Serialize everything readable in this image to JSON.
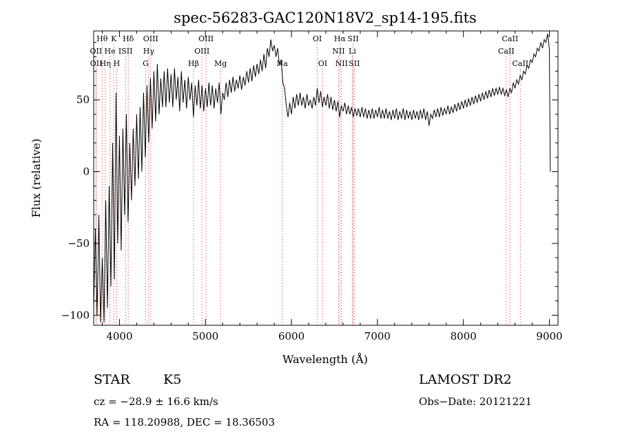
{
  "chart_data": {
    "type": "line",
    "title": "spec-56283-GAC120N18V2_sp14-195.fits",
    "xlabel": "Wavelength (Å)",
    "ylabel": "Flux (relative)",
    "xlim": [
      3700,
      9100
    ],
    "ylim": [
      -107,
      98
    ],
    "xticks": [
      4000,
      5000,
      6000,
      7000,
      8000,
      9000
    ],
    "yticks": [
      -100,
      -50,
      0,
      50
    ],
    "grid": false,
    "series": [
      {
        "color": "#000000",
        "points": [
          [
            3700,
            -95
          ],
          [
            3720,
            -40
          ],
          [
            3740,
            -100
          ],
          [
            3760,
            -30
          ],
          [
            3780,
            -105
          ],
          [
            3800,
            -60
          ],
          [
            3820,
            -105
          ],
          [
            3840,
            -20
          ],
          [
            3860,
            -95
          ],
          [
            3880,
            -10
          ],
          [
            3900,
            -80
          ],
          [
            3920,
            20
          ],
          [
            3940,
            -75
          ],
          [
            3960,
            55
          ],
          [
            3980,
            -50
          ],
          [
            4000,
            25
          ],
          [
            4020,
            -55
          ],
          [
            4040,
            30
          ],
          [
            4060,
            -30
          ],
          [
            4080,
            40
          ],
          [
            4100,
            -35
          ],
          [
            4120,
            20
          ],
          [
            4140,
            -20
          ],
          [
            4160,
            30
          ],
          [
            4180,
            -10
          ],
          [
            4200,
            40
          ],
          [
            4220,
            -5
          ],
          [
            4240,
            45
          ],
          [
            4260,
            0
          ],
          [
            4280,
            55
          ],
          [
            4300,
            10
          ],
          [
            4320,
            60
          ],
          [
            4340,
            20
          ],
          [
            4360,
            65
          ],
          [
            4380,
            30
          ],
          [
            4400,
            70
          ],
          [
            4420,
            35
          ],
          [
            4440,
            75
          ],
          [
            4460,
            40
          ],
          [
            4480,
            65
          ],
          [
            4500,
            45
          ],
          [
            4520,
            70
          ],
          [
            4540,
            45
          ],
          [
            4560,
            72
          ],
          [
            4580,
            48
          ],
          [
            4600,
            68
          ],
          [
            4620,
            45
          ],
          [
            4640,
            72
          ],
          [
            4660,
            50
          ],
          [
            4680,
            66
          ],
          [
            4700,
            42
          ],
          [
            4720,
            70
          ],
          [
            4740,
            48
          ],
          [
            4760,
            64
          ],
          [
            4780,
            44
          ],
          [
            4800,
            66
          ],
          [
            4820,
            50
          ],
          [
            4840,
            62
          ],
          [
            4860,
            38
          ],
          [
            4880,
            60
          ],
          [
            4900,
            46
          ],
          [
            4920,
            64
          ],
          [
            4940,
            44
          ],
          [
            4960,
            60
          ],
          [
            4980,
            42
          ],
          [
            5000,
            58
          ],
          [
            5020,
            45
          ],
          [
            5040,
            62
          ],
          [
            5060,
            46
          ],
          [
            5080,
            60
          ],
          [
            5100,
            44
          ],
          [
            5120,
            58
          ],
          [
            5140,
            48
          ],
          [
            5160,
            62
          ],
          [
            5180,
            40
          ],
          [
            5200,
            55
          ],
          [
            5220,
            50
          ],
          [
            5240,
            62
          ],
          [
            5260,
            52
          ],
          [
            5280,
            64
          ],
          [
            5300,
            55
          ],
          [
            5320,
            66
          ],
          [
            5340,
            56
          ],
          [
            5360,
            64
          ],
          [
            5380,
            58
          ],
          [
            5400,
            67
          ],
          [
            5420,
            57
          ],
          [
            5440,
            66
          ],
          [
            5460,
            60
          ],
          [
            5480,
            70
          ],
          [
            5500,
            62
          ],
          [
            5520,
            72
          ],
          [
            5540,
            63
          ],
          [
            5560,
            74
          ],
          [
            5580,
            66
          ],
          [
            5600,
            75
          ],
          [
            5620,
            68
          ],
          [
            5640,
            78
          ],
          [
            5660,
            70
          ],
          [
            5680,
            82
          ],
          [
            5700,
            72
          ],
          [
            5720,
            86
          ],
          [
            5740,
            80
          ],
          [
            5760,
            92
          ],
          [
            5780,
            84
          ],
          [
            5800,
            88
          ],
          [
            5820,
            80
          ],
          [
            5840,
            86
          ],
          [
            5860,
            74
          ],
          [
            5880,
            78
          ],
          [
            5900,
            62
          ],
          [
            5920,
            58
          ],
          [
            5940,
            46
          ],
          [
            5960,
            38
          ],
          [
            5980,
            48
          ],
          [
            6000,
            40
          ],
          [
            6020,
            52
          ],
          [
            6040,
            44
          ],
          [
            6060,
            54
          ],
          [
            6080,
            46
          ],
          [
            6100,
            55
          ],
          [
            6120,
            46
          ],
          [
            6140,
            52
          ],
          [
            6160,
            44
          ],
          [
            6180,
            54
          ],
          [
            6200,
            46
          ],
          [
            6220,
            50
          ],
          [
            6240,
            44
          ],
          [
            6260,
            52
          ],
          [
            6280,
            46
          ],
          [
            6300,
            58
          ],
          [
            6320,
            48
          ],
          [
            6340,
            56
          ],
          [
            6360,
            45
          ],
          [
            6380,
            52
          ],
          [
            6400,
            46
          ],
          [
            6420,
            54
          ],
          [
            6440,
            44
          ],
          [
            6460,
            52
          ],
          [
            6480,
            43
          ],
          [
            6500,
            50
          ],
          [
            6520,
            42
          ],
          [
            6540,
            49
          ],
          [
            6560,
            38
          ],
          [
            6580,
            46
          ],
          [
            6600,
            42
          ],
          [
            6620,
            48
          ],
          [
            6640,
            40
          ],
          [
            6660,
            46
          ],
          [
            6680,
            40
          ],
          [
            6700,
            45
          ],
          [
            6720,
            38
          ],
          [
            6740,
            44
          ],
          [
            6760,
            39
          ],
          [
            6780,
            44
          ],
          [
            6800,
            38
          ],
          [
            6820,
            45
          ],
          [
            6840,
            38
          ],
          [
            6860,
            44
          ],
          [
            6880,
            37
          ],
          [
            6900,
            43
          ],
          [
            6920,
            37
          ],
          [
            6940,
            44
          ],
          [
            6960,
            37
          ],
          [
            6980,
            43
          ],
          [
            7000,
            38
          ],
          [
            7020,
            45
          ],
          [
            7040,
            37
          ],
          [
            7060,
            43
          ],
          [
            7080,
            37
          ],
          [
            7100,
            44
          ],
          [
            7120,
            37
          ],
          [
            7140,
            42
          ],
          [
            7160,
            36
          ],
          [
            7180,
            43
          ],
          [
            7200,
            37
          ],
          [
            7220,
            44
          ],
          [
            7240,
            36
          ],
          [
            7260,
            42
          ],
          [
            7280,
            37
          ],
          [
            7300,
            44
          ],
          [
            7320,
            36
          ],
          [
            7340,
            43
          ],
          [
            7360,
            37
          ],
          [
            7380,
            42
          ],
          [
            7400,
            36
          ],
          [
            7420,
            43
          ],
          [
            7440,
            37
          ],
          [
            7460,
            42
          ],
          [
            7480,
            36
          ],
          [
            7500,
            43
          ],
          [
            7520,
            37
          ],
          [
            7540,
            44
          ],
          [
            7560,
            36
          ],
          [
            7580,
            42
          ],
          [
            7600,
            32
          ],
          [
            7620,
            40
          ],
          [
            7640,
            37
          ],
          [
            7660,
            43
          ],
          [
            7680,
            38
          ],
          [
            7700,
            44
          ],
          [
            7720,
            38
          ],
          [
            7740,
            45
          ],
          [
            7760,
            39
          ],
          [
            7780,
            44
          ],
          [
            7800,
            40
          ],
          [
            7820,
            46
          ],
          [
            7840,
            40
          ],
          [
            7860,
            45
          ],
          [
            7880,
            41
          ],
          [
            7900,
            47
          ],
          [
            7920,
            42
          ],
          [
            7940,
            48
          ],
          [
            7960,
            43
          ],
          [
            7980,
            49
          ],
          [
            8000,
            44
          ],
          [
            8020,
            50
          ],
          [
            8040,
            45
          ],
          [
            8060,
            51
          ],
          [
            8080,
            46
          ],
          [
            8100,
            52
          ],
          [
            8120,
            47
          ],
          [
            8140,
            53
          ],
          [
            8160,
            48
          ],
          [
            8180,
            54
          ],
          [
            8200,
            49
          ],
          [
            8220,
            55
          ],
          [
            8240,
            50
          ],
          [
            8260,
            56
          ],
          [
            8280,
            51
          ],
          [
            8300,
            57
          ],
          [
            8320,
            52
          ],
          [
            8340,
            58
          ],
          [
            8360,
            53
          ],
          [
            8380,
            58
          ],
          [
            8400,
            54
          ],
          [
            8420,
            59
          ],
          [
            8440,
            54
          ],
          [
            8460,
            58
          ],
          [
            8480,
            53
          ],
          [
            8500,
            57
          ],
          [
            8520,
            52
          ],
          [
            8540,
            58
          ],
          [
            8560,
            55
          ],
          [
            8580,
            62
          ],
          [
            8600,
            58
          ],
          [
            8620,
            64
          ],
          [
            8640,
            61
          ],
          [
            8660,
            67
          ],
          [
            8680,
            64
          ],
          [
            8700,
            70
          ],
          [
            8720,
            68
          ],
          [
            8740,
            74
          ],
          [
            8760,
            72
          ],
          [
            8780,
            78
          ],
          [
            8800,
            76
          ],
          [
            8820,
            82
          ],
          [
            8840,
            80
          ],
          [
            8860,
            86
          ],
          [
            8880,
            84
          ],
          [
            8900,
            90
          ],
          [
            8920,
            86
          ],
          [
            8940,
            92
          ],
          [
            8960,
            90
          ],
          [
            8980,
            96
          ],
          [
            9000,
            85
          ],
          [
            9010,
            0
          ]
        ]
      }
    ],
    "lines": [
      {
        "label": "Hθ",
        "wl": 3798,
        "row": 1
      },
      {
        "label": "OII",
        "wl": 3727,
        "row": 2
      },
      {
        "label": "OII",
        "wl": 3729,
        "row": 3
      },
      {
        "label": "K",
        "wl": 3934,
        "row": 1
      },
      {
        "label": "He",
        "wl": 3889,
        "row": 2
      },
      {
        "label": "Hη",
        "wl": 3835,
        "row": 3
      },
      {
        "label": "Hδ",
        "wl": 4102,
        "row": 1
      },
      {
        "label": "ISII",
        "wl": 4070,
        "row": 2
      },
      {
        "label": "H",
        "wl": 3968,
        "row": 3
      },
      {
        "label": "OIII",
        "wl": 4363,
        "row": 1
      },
      {
        "label": "Hγ",
        "wl": 4340,
        "row": 2
      },
      {
        "label": "G",
        "wl": 4305,
        "row": 3
      },
      {
        "label": "OIII",
        "wl": 5007,
        "row": 1
      },
      {
        "label": "OIII",
        "wl": 4959,
        "row": 2
      },
      {
        "label": "Hβ",
        "wl": 4861,
        "row": 3
      },
      {
        "label": "Mg",
        "wl": 5175,
        "row": 3
      },
      {
        "label": "Na",
        "wl": 5893,
        "row": 3
      },
      {
        "label": "OI",
        "wl": 6300,
        "row": 1
      },
      {
        "label": "OI",
        "wl": 6363,
        "row": 3
      },
      {
        "label": "Hα",
        "wl": 6563,
        "row": 1
      },
      {
        "label": "NII",
        "wl": 6548,
        "row": 2
      },
      {
        "label": "NII",
        "wl": 6583,
        "row": 3
      },
      {
        "label": "SII",
        "wl": 6717,
        "row": 1
      },
      {
        "label": "SII",
        "wl": 6731,
        "row": 3
      },
      {
        "label": "Li",
        "wl": 6708,
        "row": 2
      },
      {
        "label": "CaII",
        "wl": 8542,
        "row": 1
      },
      {
        "label": "CaII",
        "wl": 8498,
        "row": 2
      },
      {
        "label": "CaII",
        "wl": 8662,
        "row": 3
      }
    ]
  },
  "info": {
    "object_class": "STAR",
    "subclass": "K5",
    "survey": "LAMOST DR2",
    "redshift": "cz = −28.9 ± 16.6 km/s",
    "obs_date": "Obs−Date: 20121221",
    "coords": "RA = 118.20988, DEC =  18.36503"
  }
}
